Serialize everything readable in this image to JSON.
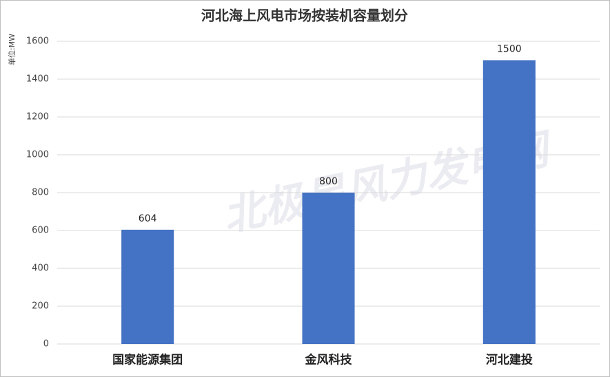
{
  "chart_data": {
    "type": "bar",
    "title": "河北海上风电市场按装机容量划分",
    "y_label": "单位:MW",
    "watermark": "北极星风力发电网",
    "categories": [
      "国家能源集团",
      "金风科技",
      "河北建投"
    ],
    "values": [
      604,
      800,
      1500
    ],
    "color": "#4472c4",
    "ylim": [
      0,
      1600
    ],
    "yticks": [
      0,
      200,
      400,
      600,
      800,
      1000,
      1200,
      1400,
      1600
    ],
    "grid": true
  }
}
